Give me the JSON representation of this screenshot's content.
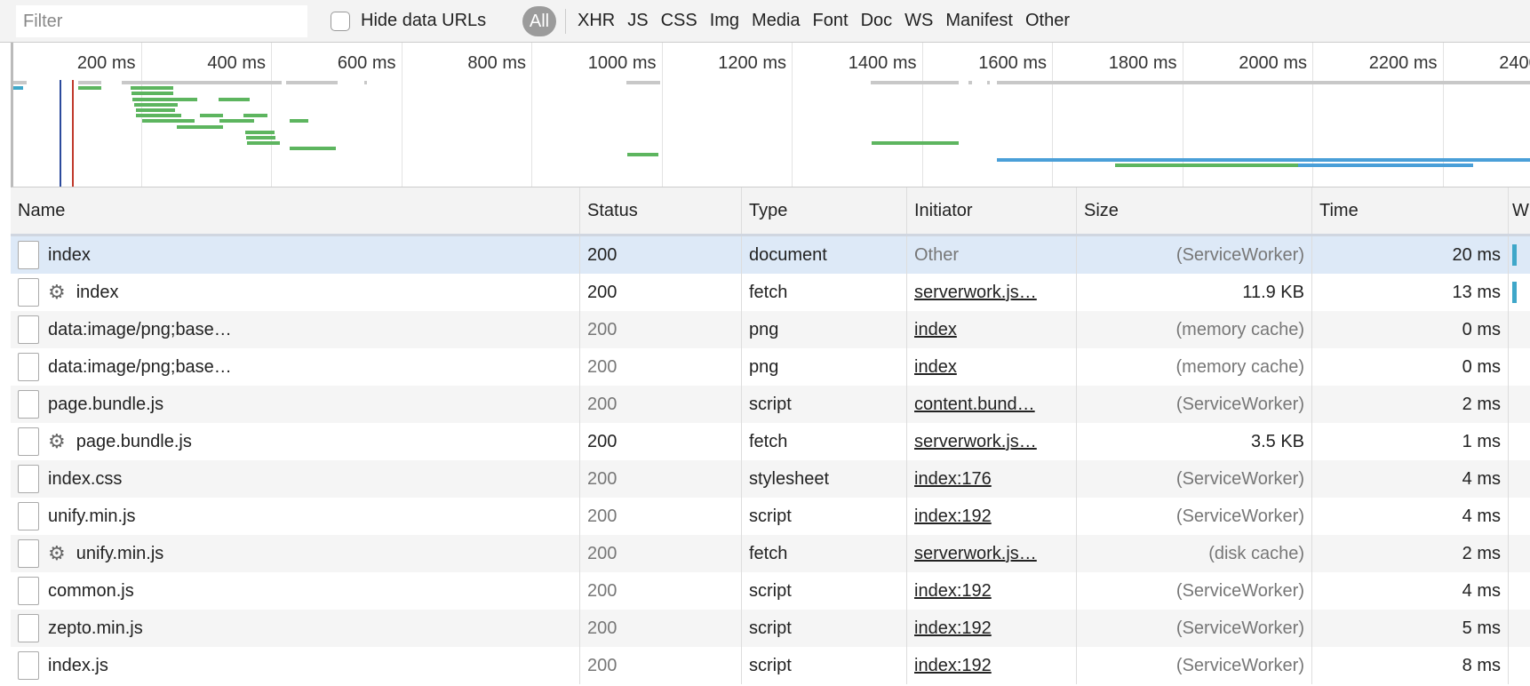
{
  "toolbar": {
    "filter_placeholder": "Filter",
    "filter_value": "",
    "hide_data_urls_label": "Hide data URLs",
    "hide_data_urls_checked": false,
    "all_label": "All",
    "types": [
      "XHR",
      "JS",
      "CSS",
      "Img",
      "Media",
      "Font",
      "Doc",
      "WS",
      "Manifest",
      "Other"
    ]
  },
  "overview": {
    "ticks": [
      "200 ms",
      "400 ms",
      "600 ms",
      "800 ms",
      "1000 ms",
      "1200 ms",
      "1400 ms",
      "1600 ms",
      "1800 ms",
      "2000 ms",
      "2200 ms",
      "2400 ms"
    ],
    "tick_values_ms": [
      200,
      400,
      600,
      800,
      1000,
      1200,
      1400,
      1600,
      1800,
      2000,
      2200,
      2400
    ],
    "colors": {
      "gray": "#c8c8c8",
      "green": "#5db55f",
      "blue": "#4a9fd8",
      "teal": "#3fa7c9",
      "dom_content_loaded": "#2b4a9c",
      "load": "#c0392b"
    },
    "markers_ms": {
      "dom_content_loaded": 75,
      "load": 94
    },
    "bars": [
      {
        "lane": 0,
        "start": 3,
        "end": 25,
        "color": "gray"
      },
      {
        "lane": 0,
        "start": 104,
        "end": 139,
        "color": "gray"
      },
      {
        "lane": 0,
        "start": 171,
        "end": 417,
        "color": "gray"
      },
      {
        "lane": 0,
        "start": 423,
        "end": 502,
        "color": "gray"
      },
      {
        "lane": 0,
        "start": 544,
        "end": 548,
        "color": "gray"
      },
      {
        "lane": 0,
        "start": 946,
        "end": 998,
        "color": "gray"
      },
      {
        "lane": 0,
        "start": 1322,
        "end": 1457,
        "color": "gray"
      },
      {
        "lane": 0,
        "start": 1471,
        "end": 1477,
        "color": "gray"
      },
      {
        "lane": 0,
        "start": 1500,
        "end": 1504,
        "color": "gray"
      },
      {
        "lane": 0,
        "start": 1515,
        "end": 2500,
        "color": "gray"
      },
      {
        "lane": 1,
        "start": 3,
        "end": 19,
        "color": "teal"
      },
      {
        "lane": 1,
        "start": 104,
        "end": 139,
        "color": "green"
      },
      {
        "lane": 1,
        "start": 184,
        "end": 250,
        "color": "green"
      },
      {
        "lane": 2,
        "start": 186,
        "end": 250,
        "color": "green"
      },
      {
        "lane": 3,
        "start": 187,
        "end": 287,
        "color": "green"
      },
      {
        "lane": 3,
        "start": 320,
        "end": 367,
        "color": "green"
      },
      {
        "lane": 4,
        "start": 190,
        "end": 257,
        "color": "green"
      },
      {
        "lane": 5,
        "start": 192,
        "end": 252,
        "color": "green"
      },
      {
        "lane": 6,
        "start": 193,
        "end": 262,
        "color": "green"
      },
      {
        "lane": 6,
        "start": 291,
        "end": 326,
        "color": "green"
      },
      {
        "lane": 6,
        "start": 358,
        "end": 394,
        "color": "green"
      },
      {
        "lane": 7,
        "start": 202,
        "end": 283,
        "color": "green"
      },
      {
        "lane": 7,
        "start": 321,
        "end": 374,
        "color": "green"
      },
      {
        "lane": 7,
        "start": 429,
        "end": 457,
        "color": "green"
      },
      {
        "lane": 8,
        "start": 255,
        "end": 326,
        "color": "green"
      },
      {
        "lane": 9,
        "start": 360,
        "end": 405,
        "color": "green"
      },
      {
        "lane": 10,
        "start": 362,
        "end": 407,
        "color": "green"
      },
      {
        "lane": 11,
        "start": 363,
        "end": 414,
        "color": "green"
      },
      {
        "lane": 11,
        "start": 1323,
        "end": 1457,
        "color": "green"
      },
      {
        "lane": 12,
        "start": 429,
        "end": 499,
        "color": "green"
      },
      {
        "lane": 13,
        "start": 947,
        "end": 995,
        "color": "green"
      },
      {
        "lane": 14,
        "start": 1515,
        "end": 2500,
        "color": "blue"
      },
      {
        "lane": 15,
        "start": 1697,
        "end": 1978,
        "color": "green"
      },
      {
        "lane": 15,
        "start": 1978,
        "end": 2247,
        "color": "blue"
      }
    ]
  },
  "table": {
    "columns": [
      "Name",
      "Status",
      "Type",
      "Initiator",
      "Size",
      "Time",
      "W"
    ],
    "rows": [
      {
        "name": "index",
        "status": "200",
        "type": "document",
        "initiator": "Other",
        "size": "(ServiceWorker)",
        "time": "20 ms",
        "icon": "document-icon",
        "gear": false,
        "selected": true,
        "status_dim": false,
        "initiator_link": false,
        "size_dim": true,
        "waterfall": true
      },
      {
        "name": "index",
        "status": "200",
        "type": "fetch",
        "initiator": "serverwork.js…",
        "size": "11.9 KB",
        "time": "13 ms",
        "icon": "blank-file-icon",
        "gear": true,
        "status_dim": false,
        "initiator_link": true,
        "size_dim": false,
        "waterfall": true
      },
      {
        "name": "data:image/png;base…",
        "status": "200",
        "type": "png",
        "initiator": "index",
        "size": "(memory cache)",
        "time": "0 ms",
        "icon": "image-icon",
        "gear": false,
        "status_dim": true,
        "initiator_link": true,
        "size_dim": true
      },
      {
        "name": "data:image/png;base…",
        "status": "200",
        "type": "png",
        "initiator": "index",
        "size": "(memory cache)",
        "time": "0 ms",
        "icon": "image-icon",
        "gear": false,
        "status_dim": true,
        "initiator_link": true,
        "size_dim": true
      },
      {
        "name": "page.bundle.js",
        "status": "200",
        "type": "script",
        "initiator": "content.bund…",
        "size": "(ServiceWorker)",
        "time": "2 ms",
        "icon": "script-file-icon",
        "gear": false,
        "status_dim": true,
        "initiator_link": true,
        "size_dim": true
      },
      {
        "name": "page.bundle.js",
        "status": "200",
        "type": "fetch",
        "initiator": "serverwork.js…",
        "size": "3.5 KB",
        "time": "1 ms",
        "icon": "blank-file-icon",
        "gear": true,
        "status_dim": false,
        "initiator_link": true,
        "size_dim": false
      },
      {
        "name": "index.css",
        "status": "200",
        "type": "stylesheet",
        "initiator": "index:176",
        "size": "(ServiceWorker)",
        "time": "4 ms",
        "icon": "script-file-icon",
        "gear": false,
        "status_dim": true,
        "initiator_link": true,
        "size_dim": true
      },
      {
        "name": "unify.min.js",
        "status": "200",
        "type": "script",
        "initiator": "index:192",
        "size": "(ServiceWorker)",
        "time": "4 ms",
        "icon": "script-file-icon",
        "gear": false,
        "status_dim": true,
        "initiator_link": true,
        "size_dim": true
      },
      {
        "name": "unify.min.js",
        "status": "200",
        "type": "fetch",
        "initiator": "serverwork.js…",
        "size": "(disk cache)",
        "time": "2 ms",
        "icon": "blank-file-icon",
        "gear": true,
        "status_dim": true,
        "initiator_link": true,
        "size_dim": true
      },
      {
        "name": "common.js",
        "status": "200",
        "type": "script",
        "initiator": "index:192",
        "size": "(ServiceWorker)",
        "time": "4 ms",
        "icon": "script-file-icon",
        "gear": false,
        "status_dim": true,
        "initiator_link": true,
        "size_dim": true
      },
      {
        "name": "zepto.min.js",
        "status": "200",
        "type": "script",
        "initiator": "index:192",
        "size": "(ServiceWorker)",
        "time": "5 ms",
        "icon": "script-file-icon",
        "gear": false,
        "status_dim": true,
        "initiator_link": true,
        "size_dim": true
      },
      {
        "name": "index.js",
        "status": "200",
        "type": "script",
        "initiator": "index:192",
        "size": "(ServiceWorker)",
        "time": "8 ms",
        "icon": "script-file-icon",
        "gear": false,
        "status_dim": true,
        "initiator_link": true,
        "size_dim": true
      }
    ]
  }
}
